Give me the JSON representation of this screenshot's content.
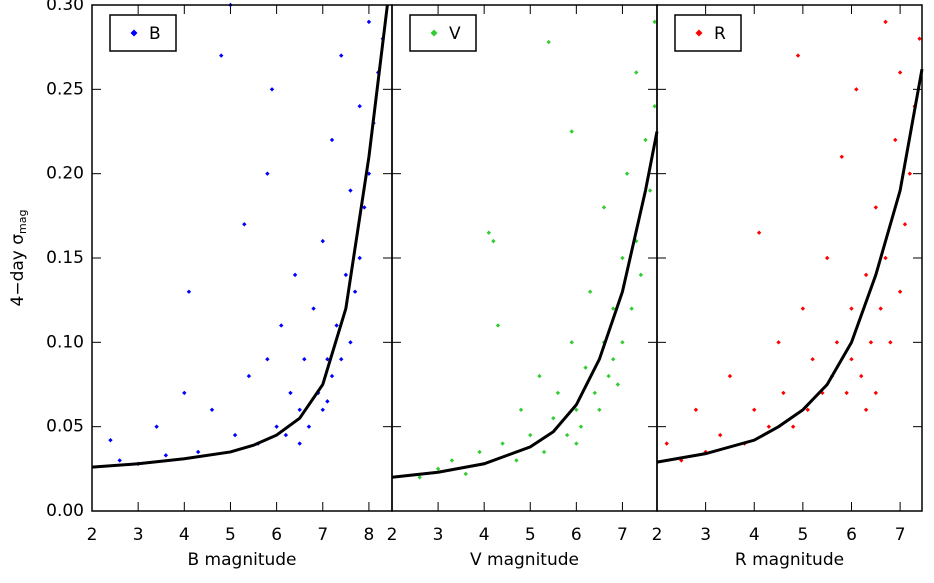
{
  "chart_data": [
    {
      "type": "scatter",
      "xlabel": "B magnitude",
      "ylabel": "4−day σ",
      "ylabel_sub": "mag",
      "xlim": [
        2,
        8.5
      ],
      "xticks": [
        2,
        3,
        4,
        5,
        6,
        7,
        8
      ],
      "ylim": [
        0,
        0.3
      ],
      "yticks": [
        {
          "value": 0,
          "label": "0.00"
        },
        {
          "value": 0.05,
          "label": "0.05"
        },
        {
          "value": 0.1,
          "label": "0.10"
        },
        {
          "value": 0.15,
          "label": "0.15"
        },
        {
          "value": 0.2,
          "label": "0.20"
        },
        {
          "value": 0.25,
          "label": "0.25"
        },
        {
          "value": 0.3,
          "label": "0.30"
        }
      ],
      "series": [
        {
          "name": "B",
          "color": "#0000ff",
          "x": [
            2.4,
            2.6,
            3.0,
            3.4,
            3.6,
            4.0,
            4.1,
            4.3,
            4.6,
            4.8,
            5.0,
            5.1,
            5.3,
            5.4,
            5.6,
            5.8,
            5.8,
            5.9,
            6.0,
            6.1,
            6.2,
            6.3,
            6.4,
            6.5,
            6.6,
            6.7,
            6.8,
            6.9,
            7.0,
            7.0,
            7.1,
            7.2,
            7.2,
            7.3,
            7.4,
            7.4,
            7.5,
            7.6,
            7.6,
            7.7,
            7.8,
            7.8,
            7.9,
            8.0,
            8.0,
            8.1,
            8.2,
            8.3,
            6.5,
            7.1
          ],
          "values": [
            0.042,
            0.03,
            0.028,
            0.05,
            0.033,
            0.07,
            0.13,
            0.035,
            0.06,
            0.27,
            0.3,
            0.045,
            0.17,
            0.08,
            0.04,
            0.2,
            0.09,
            0.25,
            0.05,
            0.11,
            0.045,
            0.07,
            0.14,
            0.06,
            0.09,
            0.05,
            0.12,
            0.07,
            0.16,
            0.06,
            0.09,
            0.22,
            0.08,
            0.11,
            0.27,
            0.09,
            0.14,
            0.1,
            0.19,
            0.13,
            0.24,
            0.15,
            0.18,
            0.29,
            0.2,
            0.23,
            0.26,
            0.28,
            0.04,
            0.065
          ]
        }
      ],
      "fit": {
        "color": "#000000",
        "x": [
          2,
          3,
          4,
          5,
          5.5,
          6,
          6.5,
          7,
          7.5,
          8,
          8.4
        ],
        "values": [
          0.026,
          0.028,
          0.031,
          0.035,
          0.039,
          0.045,
          0.055,
          0.075,
          0.12,
          0.21,
          0.3
        ]
      }
    },
    {
      "type": "scatter",
      "xlabel": "V magnitude",
      "xlim": [
        2,
        7.75
      ],
      "xticks": [
        2,
        3,
        4,
        5,
        6,
        7
      ],
      "ylim": [
        0,
        0.3
      ],
      "yticks": [
        0,
        0.05,
        0.1,
        0.15,
        0.2,
        0.25,
        0.3
      ],
      "series": [
        {
          "name": "V",
          "color": "#33cc33",
          "x": [
            2.6,
            3.0,
            3.3,
            3.6,
            3.9,
            4.1,
            4.2,
            4.3,
            4.4,
            4.7,
            4.8,
            5.0,
            5.2,
            5.3,
            5.4,
            5.5,
            5.6,
            5.8,
            5.9,
            5.9,
            6.0,
            6.1,
            6.2,
            6.3,
            6.4,
            6.5,
            6.6,
            6.6,
            6.7,
            6.8,
            6.9,
            7.0,
            7.0,
            7.1,
            7.2,
            7.3,
            7.3,
            7.4,
            7.5,
            7.6,
            7.7,
            7.7,
            6.0,
            6.8
          ],
          "values": [
            0.02,
            0.025,
            0.03,
            0.022,
            0.035,
            0.165,
            0.16,
            0.11,
            0.04,
            0.03,
            0.06,
            0.045,
            0.08,
            0.035,
            0.278,
            0.055,
            0.07,
            0.045,
            0.225,
            0.1,
            0.06,
            0.05,
            0.085,
            0.13,
            0.07,
            0.06,
            0.1,
            0.18,
            0.08,
            0.12,
            0.075,
            0.15,
            0.1,
            0.2,
            0.12,
            0.26,
            0.16,
            0.14,
            0.22,
            0.19,
            0.29,
            0.24,
            0.04,
            0.09
          ]
        }
      ],
      "fit": {
        "color": "#000000",
        "x": [
          2,
          3,
          4,
          5,
          5.5,
          6,
          6.5,
          7,
          7.5,
          7.75
        ],
        "values": [
          0.02,
          0.023,
          0.028,
          0.038,
          0.047,
          0.063,
          0.09,
          0.13,
          0.19,
          0.225
        ]
      }
    },
    {
      "type": "scatter",
      "xlabel": "R magnitude",
      "xlim": [
        2,
        7.45
      ],
      "xticks": [
        2,
        3,
        4,
        5,
        6,
        7
      ],
      "ylim": [
        0,
        0.3
      ],
      "yticks": [
        0,
        0.05,
        0.1,
        0.15,
        0.2,
        0.25,
        0.3
      ],
      "series": [
        {
          "name": "R",
          "color": "#ff0000",
          "x": [
            2.2,
            2.5,
            2.8,
            3.0,
            3.3,
            3.5,
            3.8,
            4.0,
            4.1,
            4.3,
            4.5,
            4.6,
            4.8,
            4.9,
            5.0,
            5.1,
            5.2,
            5.4,
            5.5,
            5.6,
            5.7,
            5.8,
            5.9,
            6.0,
            6.0,
            6.1,
            6.2,
            6.3,
            6.4,
            6.5,
            6.5,
            6.6,
            6.7,
            6.7,
            6.8,
            6.9,
            7.0,
            7.0,
            7.1,
            7.2,
            7.3,
            7.4,
            6.3
          ],
          "values": [
            0.04,
            0.03,
            0.06,
            0.035,
            0.045,
            0.08,
            0.04,
            0.06,
            0.165,
            0.05,
            0.1,
            0.07,
            0.05,
            0.27,
            0.12,
            0.06,
            0.09,
            0.07,
            0.15,
            0.08,
            0.1,
            0.21,
            0.07,
            0.12,
            0.09,
            0.25,
            0.08,
            0.14,
            0.1,
            0.18,
            0.07,
            0.12,
            0.29,
            0.15,
            0.1,
            0.22,
            0.13,
            0.26,
            0.17,
            0.2,
            0.24,
            0.28,
            0.06
          ]
        }
      ],
      "fit": {
        "color": "#000000",
        "x": [
          2,
          3,
          4,
          4.5,
          5,
          5.5,
          6,
          6.5,
          7,
          7.45
        ],
        "values": [
          0.029,
          0.034,
          0.042,
          0.05,
          0.06,
          0.075,
          0.1,
          0.14,
          0.19,
          0.262
        ]
      }
    }
  ]
}
